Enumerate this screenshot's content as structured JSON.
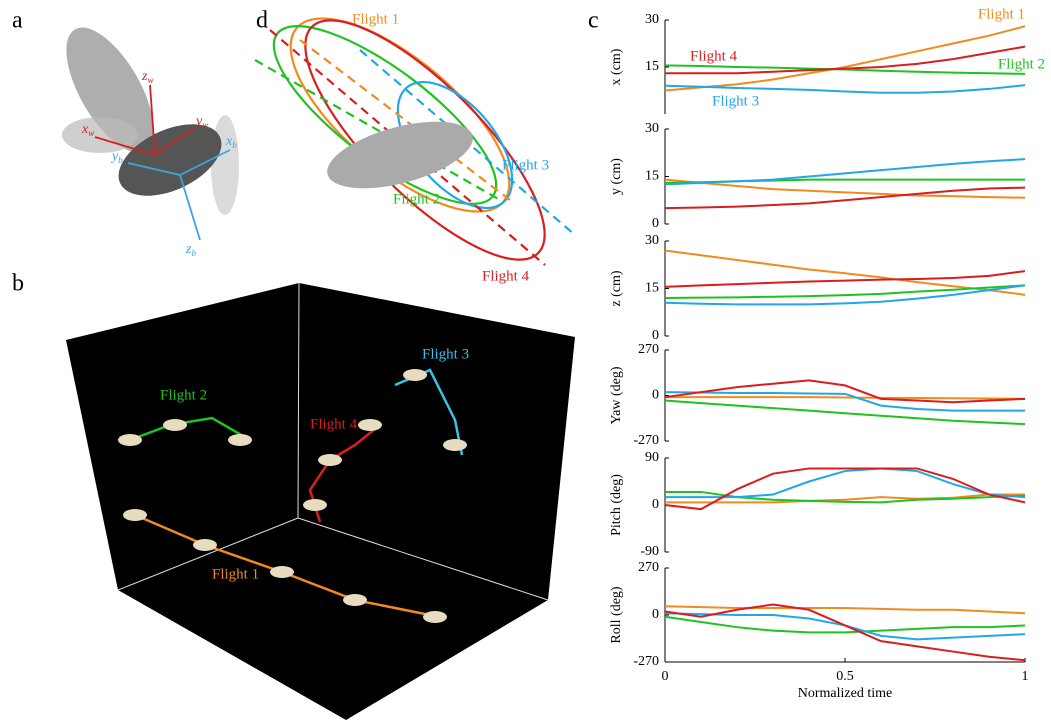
{
  "panels": {
    "a": {
      "label": "a",
      "axes": [
        {
          "main": "z",
          "sub": "w"
        },
        {
          "main": "y",
          "sub": "w"
        },
        {
          "main": "x",
          "sub": "w"
        },
        {
          "main": "y",
          "sub": "b"
        },
        {
          "main": "x",
          "sub": "b"
        },
        {
          "main": "z",
          "sub": "b"
        }
      ]
    },
    "b": {
      "label": "b",
      "flights": [
        "Flight 1",
        "Flight 2",
        "Flight 3",
        "Flight 4"
      ]
    },
    "c": {
      "label": "c"
    },
    "d": {
      "label": "d",
      "flights": [
        "Flight 1",
        "Flight 2",
        "Flight 3",
        "Flight 4"
      ]
    }
  },
  "chart_data": [
    {
      "type": "line",
      "ylabel": "x (cm)",
      "x": [
        0,
        0.1,
        0.2,
        0.3,
        0.4,
        0.5,
        0.6,
        0.7,
        0.8,
        0.9,
        1
      ],
      "xlim": [
        0,
        1
      ],
      "ylim": [
        0,
        30
      ],
      "yticks": [
        15,
        30
      ],
      "series": [
        {
          "name": "Flight 1",
          "color": "#f28a1e",
          "values": [
            7.5,
            8.5,
            9.5,
            11,
            13,
            15,
            17.5,
            20,
            22.5,
            25,
            28
          ]
        },
        {
          "name": "Flight 2",
          "color": "#1fc31f",
          "values": [
            15.5,
            15.3,
            15,
            14.8,
            14.5,
            14.2,
            13.8,
            13.5,
            13.2,
            13,
            12.8
          ]
        },
        {
          "name": "Flight 3",
          "color": "#22a6e8",
          "values": [
            9,
            8.7,
            8.3,
            8,
            7.7,
            7.2,
            6.8,
            6.8,
            7.2,
            8,
            9.2
          ]
        },
        {
          "name": "Flight 4",
          "color": "#d81e1e",
          "values": [
            13,
            13,
            13,
            13.5,
            14,
            14.5,
            15,
            16,
            17.5,
            19.5,
            21.5
          ]
        }
      ]
    },
    {
      "type": "line",
      "ylabel": "y (cm)",
      "x": [
        0,
        0.1,
        0.2,
        0.3,
        0.4,
        0.5,
        0.6,
        0.7,
        0.8,
        0.9,
        1
      ],
      "xlim": [
        0,
        1
      ],
      "ylim": [
        0,
        30
      ],
      "yticks": [
        0,
        15,
        30
      ],
      "series": [
        {
          "color": "#f28a1e",
          "values": [
            14,
            13,
            12,
            11,
            10.5,
            10,
            9.5,
            9,
            8.8,
            8.5,
            8.3
          ]
        },
        {
          "color": "#1fc31f",
          "values": [
            13,
            13.2,
            13.5,
            13.7,
            14,
            14,
            14,
            14,
            14,
            14,
            14
          ]
        },
        {
          "color": "#22a6e8",
          "values": [
            12.5,
            13,
            13.5,
            14,
            15,
            16,
            17,
            18,
            19,
            19.8,
            20.5
          ]
        },
        {
          "color": "#d81e1e",
          "values": [
            5,
            5.2,
            5.5,
            6,
            6.5,
            7.5,
            8.5,
            9.5,
            10.5,
            11.2,
            11.5
          ]
        }
      ]
    },
    {
      "type": "line",
      "ylabel": "z (cm)",
      "x": [
        0,
        0.1,
        0.2,
        0.3,
        0.4,
        0.5,
        0.6,
        0.7,
        0.8,
        0.9,
        1
      ],
      "xlim": [
        0,
        1
      ],
      "ylim": [
        0,
        30
      ],
      "yticks": [
        0,
        15,
        30
      ],
      "series": [
        {
          "color": "#f28a1e",
          "values": [
            27,
            25.5,
            24,
            22.5,
            21,
            19.8,
            18.5,
            17,
            15.7,
            14.5,
            13
          ]
        },
        {
          "color": "#1fc31f",
          "values": [
            12,
            12.1,
            12.2,
            12.4,
            12.6,
            12.9,
            13.3,
            14,
            14.6,
            15.3,
            16
          ]
        },
        {
          "color": "#22a6e8",
          "values": [
            10.5,
            10.2,
            10,
            10,
            10,
            10.3,
            10.8,
            11.8,
            13,
            14.5,
            16
          ]
        },
        {
          "color": "#d81e1e",
          "values": [
            15.5,
            16,
            16.4,
            16.8,
            17.2,
            17.5,
            17.8,
            18,
            18.3,
            19,
            20.5
          ]
        }
      ]
    },
    {
      "type": "line",
      "ylabel": "Yaw (deg)",
      "x": [
        0,
        0.1,
        0.2,
        0.3,
        0.4,
        0.5,
        0.6,
        0.7,
        0.8,
        0.9,
        1
      ],
      "xlim": [
        0,
        1
      ],
      "ylim": [
        -270,
        270
      ],
      "yticks": [
        -270,
        0,
        270
      ],
      "series": [
        {
          "color": "#f28a1e",
          "values": [
            -10,
            -10,
            -10,
            -10,
            -10,
            -12,
            -14,
            -15,
            -16,
            -18,
            -20
          ]
        },
        {
          "color": "#1fc31f",
          "values": [
            -30,
            -45,
            -60,
            -75,
            -90,
            -105,
            -120,
            -135,
            -150,
            -160,
            -170
          ]
        },
        {
          "color": "#22a6e8",
          "values": [
            20,
            18,
            15,
            15,
            12,
            10,
            -60,
            -80,
            -90,
            -90,
            -90
          ]
        },
        {
          "color": "#d81e1e",
          "values": [
            -10,
            20,
            50,
            70,
            90,
            60,
            -20,
            -30,
            -40,
            -30,
            -20
          ]
        }
      ]
    },
    {
      "type": "line",
      "ylabel": "Pitch (deg)",
      "x": [
        0,
        0.1,
        0.2,
        0.3,
        0.4,
        0.5,
        0.6,
        0.7,
        0.8,
        0.9,
        1
      ],
      "xlim": [
        0,
        1
      ],
      "ylim": [
        -90,
        90
      ],
      "yticks": [
        -90,
        0,
        90
      ],
      "series": [
        {
          "color": "#f28a1e",
          "values": [
            5,
            5,
            5,
            5,
            8,
            10,
            15,
            12,
            14,
            20,
            20
          ]
        },
        {
          "color": "#1fc31f",
          "values": [
            25,
            25,
            15,
            10,
            8,
            6,
            5,
            10,
            12,
            15,
            18
          ]
        },
        {
          "color": "#22a6e8",
          "values": [
            15,
            15,
            15,
            20,
            45,
            65,
            70,
            65,
            40,
            20,
            15
          ]
        },
        {
          "color": "#d81e1e",
          "values": [
            0,
            -8,
            30,
            60,
            70,
            70,
            70,
            70,
            50,
            20,
            5
          ]
        }
      ]
    },
    {
      "type": "line",
      "ylabel": "Roll (deg)",
      "x": [
        0,
        0.1,
        0.2,
        0.3,
        0.4,
        0.5,
        0.6,
        0.7,
        0.8,
        0.9,
        1
      ],
      "xlim": [
        0,
        1
      ],
      "ylim": [
        -270,
        270
      ],
      "yticks": [
        -270,
        0,
        270
      ],
      "xticks": [
        0,
        0.5,
        1
      ],
      "xlabel": "Normalized time",
      "series": [
        {
          "color": "#f28a1e",
          "values": [
            50,
            45,
            40,
            40,
            40,
            40,
            35,
            30,
            30,
            20,
            10
          ]
        },
        {
          "color": "#1fc31f",
          "values": [
            -10,
            -40,
            -70,
            -90,
            -100,
            -100,
            -90,
            -80,
            -70,
            -70,
            -60
          ]
        },
        {
          "color": "#22a6e8",
          "values": [
            10,
            5,
            0,
            0,
            -20,
            -60,
            -120,
            -140,
            -130,
            -120,
            -110
          ]
        },
        {
          "color": "#d81e1e",
          "values": [
            20,
            -10,
            30,
            60,
            30,
            -60,
            -150,
            -180,
            -210,
            -240,
            -260
          ]
        }
      ]
    }
  ]
}
